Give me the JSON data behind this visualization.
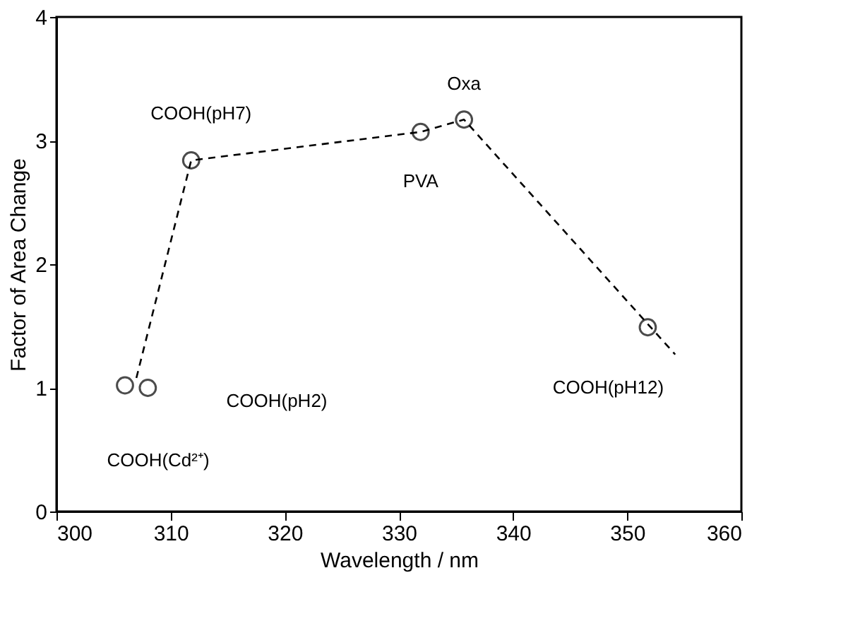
{
  "chart_data": {
    "type": "scatter",
    "xlabel": "Wavelength / nm",
    "ylabel": "Factor of Area Change",
    "xlim": [
      300,
      360
    ],
    "xticks": [
      300,
      310,
      320,
      330,
      340,
      350,
      360
    ],
    "ylim": [
      0,
      4
    ],
    "yticks": [
      0,
      1,
      2,
      3,
      4
    ],
    "grid": false,
    "marker": "circle",
    "series": [
      {
        "color": "#000000",
        "x": [
          306,
          308,
          311.8,
          331.9,
          335.7,
          351.8
        ],
        "values": [
          1.02,
          1.0,
          2.84,
          3.07,
          3.17,
          1.49
        ]
      },
      {
        "type": "line",
        "color": "#000000",
        "line_style": "dashed",
        "marker": "none",
        "x": [
          307,
          311.8,
          331.9,
          335.7,
          354.2
        ],
        "values": [
          1.08,
          2.84,
          3.07,
          3.17,
          1.27
        ]
      }
    ],
    "annotations": [
      {
        "text": "COOH(pH7)",
        "x": 311.8,
        "y": 2.84
      },
      {
        "text": "Oxa",
        "x": 335.7,
        "y": 3.17
      },
      {
        "text": "PVA",
        "x": 331.9,
        "y": 3.07
      },
      "COOH(pH2)",
      "COOH(Cd²⁺)",
      {
        "text": "COOH(pH12)",
        "x": 351.8,
        "y": 1.49
      }
    ]
  }
}
